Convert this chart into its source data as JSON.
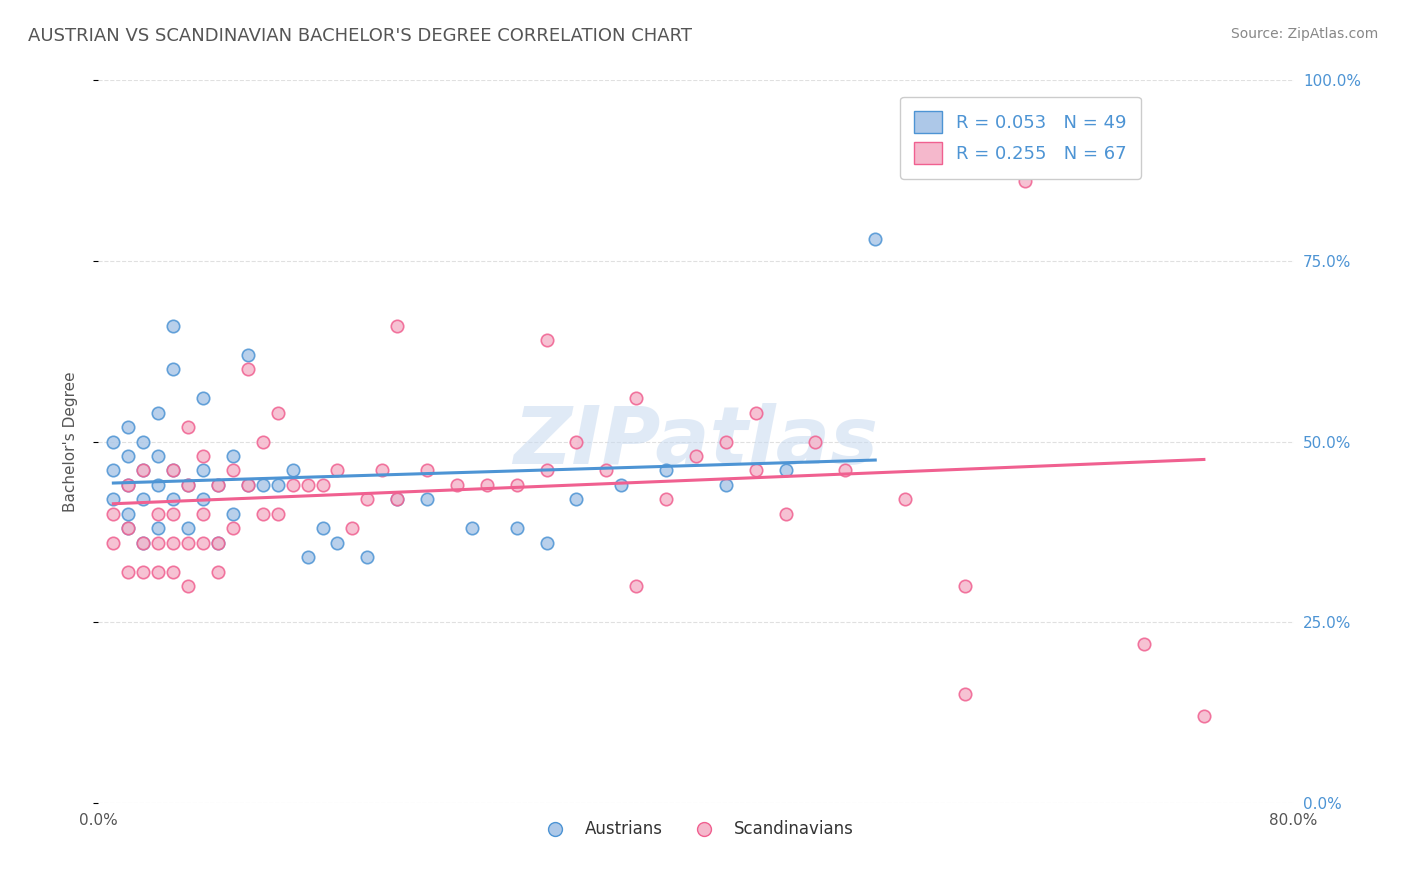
{
  "title": "AUSTRIAN VS SCANDINAVIAN BACHELOR'S DEGREE CORRELATION CHART",
  "source_text": "Source: ZipAtlas.com",
  "ylabel": "Bachelor's Degree",
  "xlim": [
    0.0,
    0.8
  ],
  "ylim": [
    0.0,
    1.0
  ],
  "ytick_vals": [
    0.0,
    0.25,
    0.5,
    0.75,
    1.0
  ],
  "ytick_labels_right": [
    "0.0%",
    "25.0%",
    "50.0%",
    "75.0%",
    "100.0%"
  ],
  "legend_r_austrians": "R = 0.053",
  "legend_n_austrians": "N = 49",
  "legend_r_scandinavians": "R = 0.255",
  "legend_n_scandinavians": "N = 67",
  "austrian_color": "#adc8e8",
  "scandinavian_color": "#f5b8cc",
  "austrian_line_color": "#4d94d4",
  "scandinavian_line_color": "#f06090",
  "title_color": "#555555",
  "source_color": "#888888",
  "watermark_color": "#c8daf0",
  "background_color": "#ffffff",
  "grid_color": "#dddddd",
  "austrians_x": [
    0.01,
    0.01,
    0.01,
    0.02,
    0.02,
    0.02,
    0.02,
    0.02,
    0.03,
    0.03,
    0.03,
    0.03,
    0.04,
    0.04,
    0.04,
    0.04,
    0.05,
    0.05,
    0.05,
    0.05,
    0.06,
    0.06,
    0.07,
    0.07,
    0.07,
    0.08,
    0.08,
    0.09,
    0.09,
    0.1,
    0.1,
    0.11,
    0.12,
    0.13,
    0.14,
    0.15,
    0.16,
    0.18,
    0.2,
    0.22,
    0.25,
    0.28,
    0.3,
    0.32,
    0.35,
    0.38,
    0.42,
    0.46,
    0.52
  ],
  "austrians_y": [
    0.42,
    0.46,
    0.5,
    0.4,
    0.44,
    0.48,
    0.52,
    0.38,
    0.42,
    0.46,
    0.5,
    0.36,
    0.44,
    0.48,
    0.38,
    0.54,
    0.42,
    0.46,
    0.6,
    0.66,
    0.38,
    0.44,
    0.56,
    0.42,
    0.46,
    0.44,
    0.36,
    0.4,
    0.48,
    0.62,
    0.44,
    0.44,
    0.44,
    0.46,
    0.34,
    0.38,
    0.36,
    0.34,
    0.42,
    0.42,
    0.38,
    0.38,
    0.36,
    0.42,
    0.44,
    0.46,
    0.44,
    0.46,
    0.78
  ],
  "scandinavians_x": [
    0.01,
    0.01,
    0.02,
    0.02,
    0.02,
    0.03,
    0.03,
    0.03,
    0.04,
    0.04,
    0.04,
    0.05,
    0.05,
    0.05,
    0.05,
    0.06,
    0.06,
    0.06,
    0.06,
    0.07,
    0.07,
    0.07,
    0.08,
    0.08,
    0.08,
    0.09,
    0.09,
    0.1,
    0.1,
    0.11,
    0.11,
    0.12,
    0.12,
    0.13,
    0.14,
    0.15,
    0.16,
    0.17,
    0.18,
    0.19,
    0.2,
    0.22,
    0.24,
    0.26,
    0.28,
    0.3,
    0.32,
    0.34,
    0.36,
    0.38,
    0.4,
    0.42,
    0.44,
    0.46,
    0.48,
    0.5,
    0.54,
    0.58,
    0.62,
    0.66,
    0.7,
    0.3,
    0.2,
    0.44,
    0.36,
    0.58,
    0.74
  ],
  "scandinavians_y": [
    0.4,
    0.36,
    0.38,
    0.44,
    0.32,
    0.46,
    0.36,
    0.32,
    0.4,
    0.36,
    0.32,
    0.46,
    0.4,
    0.36,
    0.32,
    0.52,
    0.44,
    0.36,
    0.3,
    0.48,
    0.4,
    0.36,
    0.44,
    0.36,
    0.32,
    0.46,
    0.38,
    0.6,
    0.44,
    0.5,
    0.4,
    0.54,
    0.4,
    0.44,
    0.44,
    0.44,
    0.46,
    0.38,
    0.42,
    0.46,
    0.42,
    0.46,
    0.44,
    0.44,
    0.44,
    0.46,
    0.5,
    0.46,
    0.3,
    0.42,
    0.48,
    0.5,
    0.46,
    0.4,
    0.5,
    0.46,
    0.42,
    0.3,
    0.86,
    0.88,
    0.22,
    0.64,
    0.66,
    0.54,
    0.56,
    0.15,
    0.12
  ],
  "legend_fontsize": 13,
  "title_fontsize": 13,
  "axis_label_fontsize": 11
}
